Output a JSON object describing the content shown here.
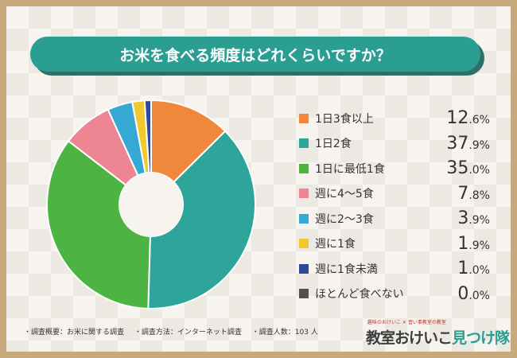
{
  "title": "お米を食べる頻度はどれくらいですか？",
  "chart_data": {
    "type": "pie",
    "title": "お米を食べる頻度はどれくらいですか？",
    "donut": true,
    "legend_position": "right",
    "slices": [
      {
        "label": "1日3食以上",
        "value": 12.6,
        "int": "12",
        "dec": ".6%",
        "color": "#f0873a"
      },
      {
        "label": "1日2食",
        "value": 37.9,
        "int": "37",
        "dec": ".9%",
        "color": "#2ea59a"
      },
      {
        "label": "1日に最低1食",
        "value": 35.0,
        "int": "35",
        "dec": ".0%",
        "color": "#4db443"
      },
      {
        "label": "週に4〜5食",
        "value": 7.8,
        "int": "7",
        "dec": ".8%",
        "color": "#ee8593"
      },
      {
        "label": "週に2〜3食",
        "value": 3.9,
        "int": "3",
        "dec": ".9%",
        "color": "#35a8d3"
      },
      {
        "label": "週に1食",
        "value": 1.9,
        "int": "1",
        "dec": ".9%",
        "color": "#f2c82f"
      },
      {
        "label": "週に1食未満",
        "value": 1.0,
        "int": "1",
        "dec": ".0%",
        "color": "#2d4a9a"
      },
      {
        "label": "ほとんど食べない",
        "value": 0.0,
        "int": "0",
        "dec": ".0%",
        "color": "#505050"
      }
    ]
  },
  "footer": {
    "overview": "・調査概要：お米に関する調査",
    "method": "・調査方法：インターネット調査",
    "count": "・調査人数：103 人"
  },
  "brand": {
    "sub": "趣味のおけいこ ✕ 習い事教室の教室",
    "main_a": "教室おけいこ",
    "main_b": "見つけ隊"
  }
}
